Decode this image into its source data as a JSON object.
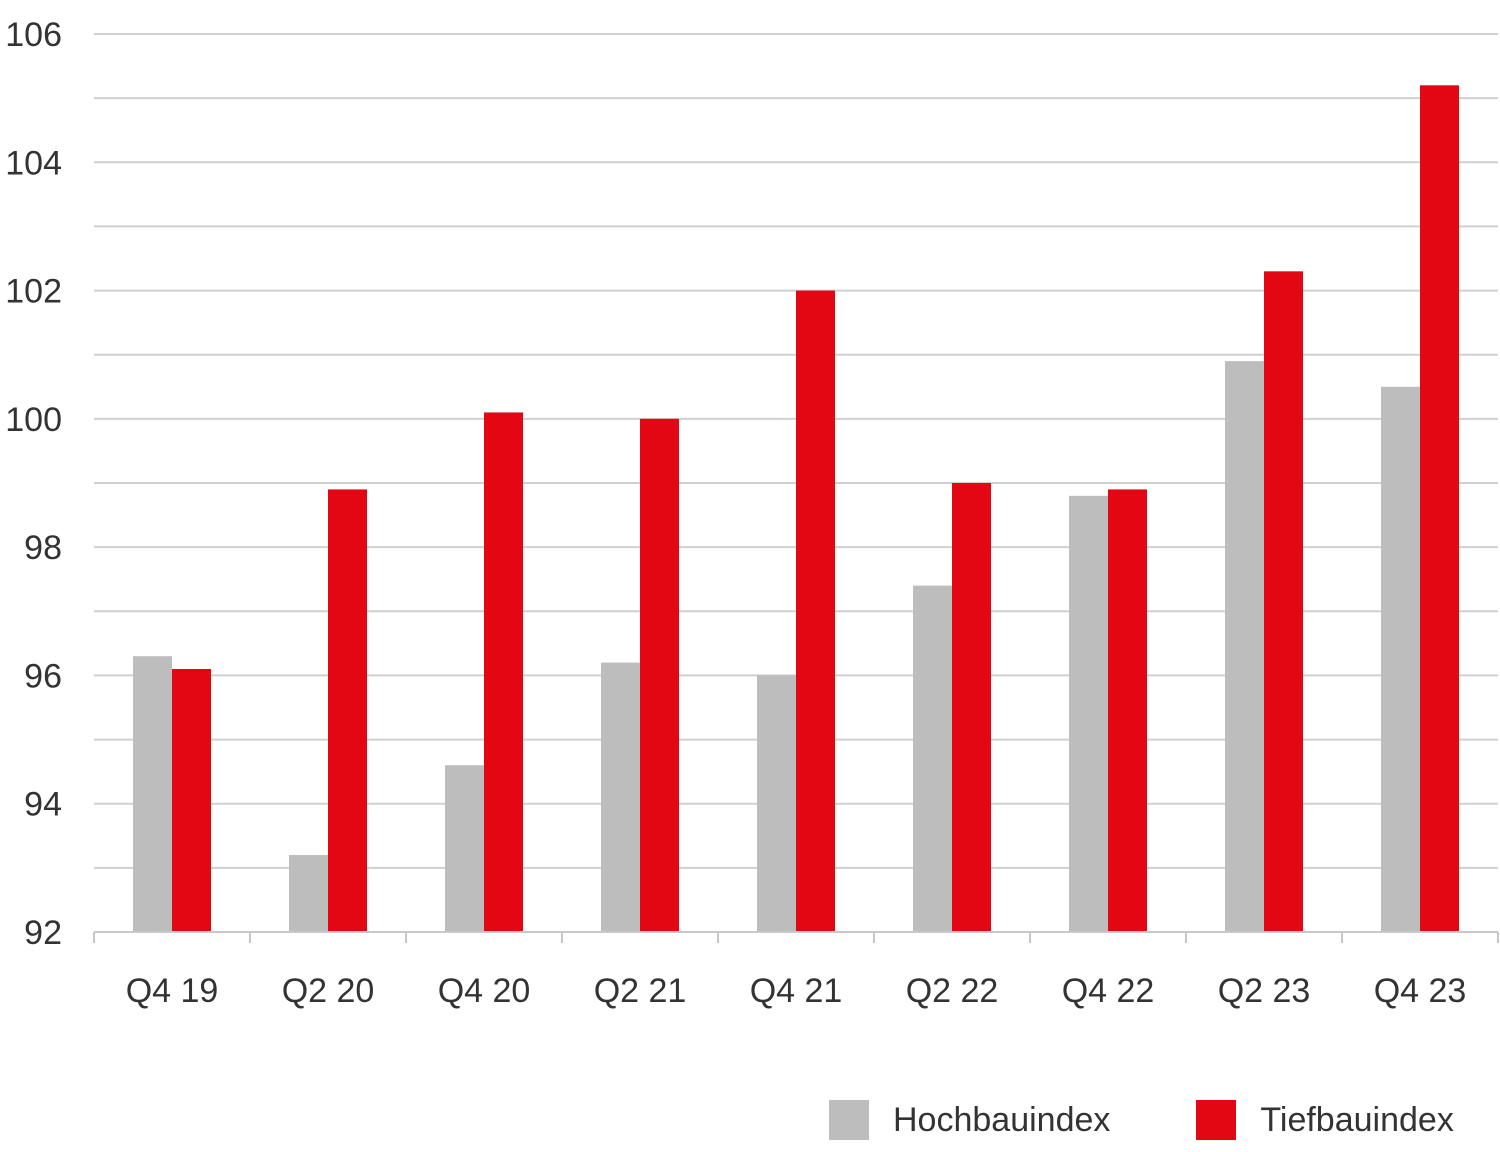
{
  "chart_data": {
    "type": "bar",
    "categories": [
      "Q4 19",
      "Q2 20",
      "Q4 20",
      "Q2 21",
      "Q4 21",
      "Q2 22",
      "Q4 22",
      "Q2 23",
      "Q4 23"
    ],
    "series": [
      {
        "name": "Hochbauindex",
        "color": "#bdbdbd",
        "values": [
          96.3,
          93.2,
          94.6,
          96.2,
          96.0,
          97.4,
          98.8,
          100.9,
          100.5
        ]
      },
      {
        "name": "Tiefbauindex",
        "color": "#e30613",
        "values": [
          96.1,
          98.9,
          100.1,
          100.0,
          102.0,
          99.0,
          98.9,
          102.3,
          105.2
        ]
      }
    ],
    "ylim": [
      92,
      106
    ],
    "yticks": [
      "92",
      "94",
      "96",
      "98",
      "100",
      "102",
      "104",
      "106"
    ],
    "minor_grid_step": 1,
    "grid": true,
    "legend_position": "bottom-right",
    "title": "",
    "xlabel": "",
    "ylabel": ""
  }
}
